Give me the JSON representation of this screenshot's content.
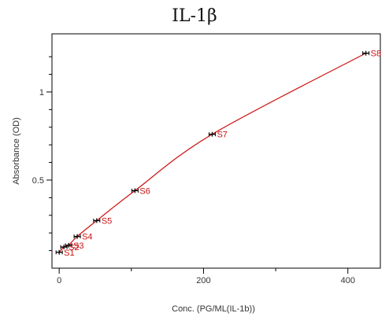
{
  "chart_data": {
    "type": "line",
    "title": "IL-1β",
    "xlabel": "Conc. (PG/ML(IL-1b))",
    "ylabel": "Absorbance (OD)",
    "xlim": [
      -10,
      445
    ],
    "ylim": [
      0,
      1.33
    ],
    "x_ticks": [
      0,
      200,
      400
    ],
    "y_ticks": [
      0.5,
      1
    ],
    "x_tick_labels": [
      "0",
      "200",
      "400"
    ],
    "y_tick_labels": [
      "0.5",
      "1"
    ],
    "grid": false,
    "series": [
      {
        "points": [
          {
            "label": "S1",
            "x": 0,
            "y": 0.09
          },
          {
            "label": "S2",
            "x": 6.5,
            "y": 0.12
          },
          {
            "label": "S3",
            "x": 13,
            "y": 0.13
          },
          {
            "label": "S4",
            "x": 25,
            "y": 0.18
          },
          {
            "label": "S5",
            "x": 52,
            "y": 0.27
          },
          {
            "label": "S6",
            "x": 105,
            "y": 0.44
          },
          {
            "label": "S7",
            "x": 212,
            "y": 0.76
          },
          {
            "label": "S8",
            "x": 425,
            "y": 1.22
          }
        ]
      }
    ],
    "colors": {
      "curve": "#cc1111",
      "labels": "#cc1111",
      "markers": "#000000",
      "axes": "#000000"
    }
  }
}
